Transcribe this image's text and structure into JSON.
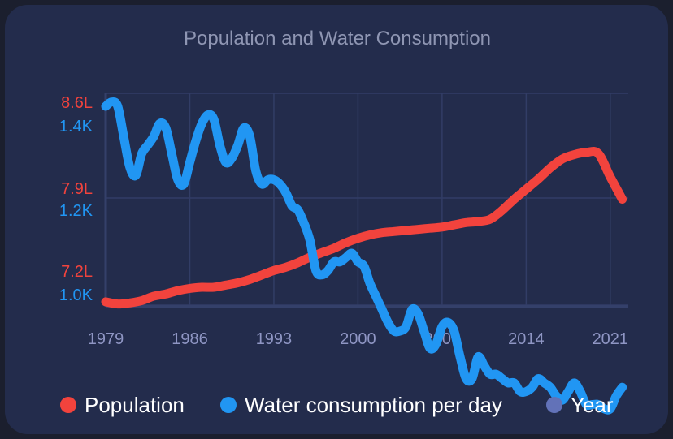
{
  "colors": {
    "population": "#f2433d",
    "water": "#2196f3",
    "year": "#6272b8",
    "grid": "#323d66",
    "axis": "#34406a"
  },
  "chart_data": {
    "type": "line",
    "title": "Population and Water Consumption",
    "x_ticks": [
      "1979",
      "1986",
      "1993",
      "2000",
      "2007",
      "2014",
      "2021"
    ],
    "x_range": [
      1979,
      2022.5
    ],
    "y_left": {
      "ticks_pop": [
        "8.6L",
        "7.9L",
        "7.2L"
      ],
      "ticks_water": [
        "1.4K",
        "1.2K",
        "1.0K"
      ],
      "pop_range": [
        6.85,
        8.75
      ],
      "water_range": [
        0.99,
        1.48
      ]
    },
    "legend": [
      "Population",
      "Water consumption per day",
      "Year"
    ],
    "series": [
      {
        "name": "Population",
        "x": [
          1979,
          1980,
          1981,
          1982,
          1983,
          1984,
          1985,
          1986,
          1987,
          1988,
          1989,
          1990,
          1991,
          1992,
          1993,
          1994,
          1995,
          1996,
          1997,
          1998,
          1999,
          2000,
          2001,
          2002,
          2003,
          2004,
          2005,
          2006,
          2007,
          2008,
          2009,
          2010,
          2011,
          2012,
          2013,
          2014,
          2015,
          2016,
          2017,
          2018,
          2019,
          2020,
          2021,
          2022
        ],
        "values": [
          6.88,
          6.86,
          6.87,
          6.89,
          6.93,
          6.95,
          6.98,
          7.0,
          7.01,
          7.01,
          7.03,
          7.05,
          7.08,
          7.12,
          7.16,
          7.19,
          7.23,
          7.28,
          7.32,
          7.36,
          7.41,
          7.45,
          7.48,
          7.5,
          7.51,
          7.52,
          7.53,
          7.54,
          7.55,
          7.57,
          7.59,
          7.6,
          7.62,
          7.7,
          7.8,
          7.89,
          7.98,
          8.08,
          8.16,
          8.2,
          8.22,
          8.21,
          8.0,
          7.8
        ]
      },
      {
        "name": "Water consumption per day",
        "x": [
          1979,
          1979.5,
          1980,
          1980.5,
          1981,
          1981.5,
          1982,
          1982.5,
          1983,
          1983.5,
          1984,
          1984.5,
          1985,
          1985.5,
          1986,
          1986.5,
          1987,
          1987.5,
          1988,
          1988.5,
          1989,
          1989.5,
          1990,
          1990.5,
          1991,
          1991.5,
          1992,
          1992.5,
          1993,
          1993.5,
          1994,
          1994.5,
          1995,
          1995.5,
          1996,
          1996.5,
          1997,
          1997.5,
          1998,
          1998.5,
          1999,
          1999.5,
          2000,
          2000.5,
          2001,
          2001.5,
          2002,
          2002.5,
          2003,
          2003.5,
          2004,
          2004.5,
          2005,
          2005.5,
          2006,
          2006.5,
          2007,
          2007.5,
          2008,
          2008.5,
          2009,
          2009.5,
          2010,
          2010.5,
          2011,
          2011.5,
          2012,
          2012.5,
          2013,
          2013.5,
          2014,
          2014.5,
          2015,
          2015.5,
          2016,
          2016.5,
          2017,
          2017.5,
          2018,
          2018.5,
          2019,
          2019.5,
          2020,
          2020.5,
          2021,
          2021.5,
          2022
        ],
        "values": [
          1.45,
          1.46,
          1.45,
          1.38,
          1.31,
          1.29,
          1.34,
          1.36,
          1.38,
          1.41,
          1.4,
          1.34,
          1.28,
          1.27,
          1.32,
          1.37,
          1.41,
          1.43,
          1.42,
          1.36,
          1.32,
          1.33,
          1.36,
          1.4,
          1.38,
          1.3,
          1.27,
          1.28,
          1.28,
          1.27,
          1.25,
          1.22,
          1.21,
          1.18,
          1.14,
          1.07,
          1.06,
          1.07,
          1.09,
          1.09,
          1.1,
          1.11,
          1.09,
          1.08,
          1.04,
          1.01,
          0.98,
          0.95,
          0.93,
          0.93,
          0.94,
          0.98,
          0.97,
          0.93,
          0.89,
          0.9,
          0.94,
          0.95,
          0.93,
          0.87,
          0.82,
          0.82,
          0.87,
          0.85,
          0.83,
          0.83,
          0.82,
          0.81,
          0.81,
          0.79,
          0.79,
          0.8,
          0.82,
          0.81,
          0.8,
          0.78,
          0.77,
          0.79,
          0.81,
          0.79,
          0.76,
          0.76,
          0.76,
          0.75,
          0.75,
          0.78,
          0.8
        ]
      }
    ],
    "grid": true,
    "legend_position": "bottom"
  }
}
